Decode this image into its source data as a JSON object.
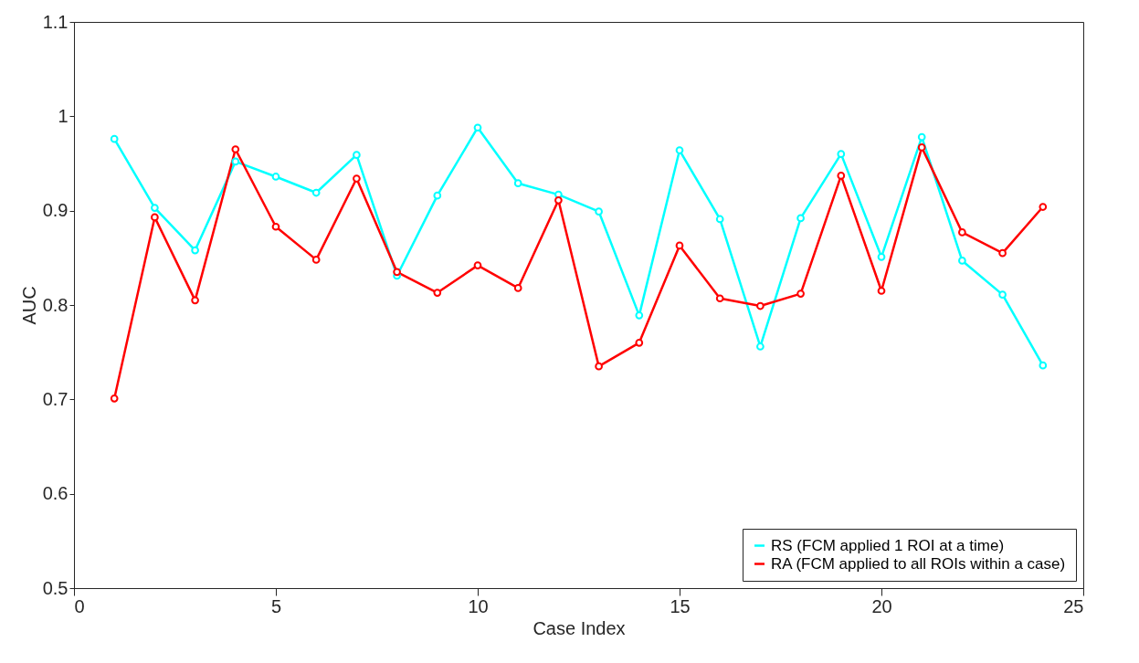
{
  "chart_data": {
    "type": "line",
    "xlabel": "Case Index",
    "ylabel": "AUC",
    "x": [
      1,
      2,
      3,
      4,
      5,
      6,
      7,
      8,
      9,
      10,
      11,
      12,
      13,
      14,
      15,
      16,
      17,
      18,
      19,
      20,
      21,
      22,
      23,
      24
    ],
    "series": [
      {
        "name": "RS (FCM applied 1 ROI at a time)",
        "color": "#00ffff",
        "values": [
          0.976,
          0.903,
          0.858,
          0.952,
          0.936,
          0.919,
          0.959,
          0.831,
          0.916,
          0.988,
          0.929,
          0.917,
          0.899,
          0.789,
          0.964,
          0.891,
          0.756,
          0.892,
          0.96,
          0.851,
          0.978,
          0.847,
          0.811,
          0.736
        ]
      },
      {
        "name": "RA (FCM applied to all ROIs within a case)",
        "color": "#ff0000",
        "values": [
          0.701,
          0.893,
          0.805,
          0.965,
          0.883,
          0.848,
          0.934,
          0.835,
          0.813,
          0.842,
          0.818,
          0.911,
          0.735,
          0.76,
          0.863,
          0.807,
          0.799,
          0.812,
          0.937,
          0.815,
          0.967,
          0.877,
          0.855,
          0.904
        ]
      }
    ],
    "xlim": [
      0,
      25
    ],
    "xticks": [
      0,
      5,
      10,
      15,
      20,
      25
    ],
    "ylim": [
      0.5,
      1.1
    ],
    "yticks": [
      0.5,
      0.6,
      0.7,
      0.8,
      0.9,
      1,
      1.1
    ],
    "grid": false,
    "legend": "bottom right",
    "marker": "circle",
    "line_style": "solid"
  }
}
